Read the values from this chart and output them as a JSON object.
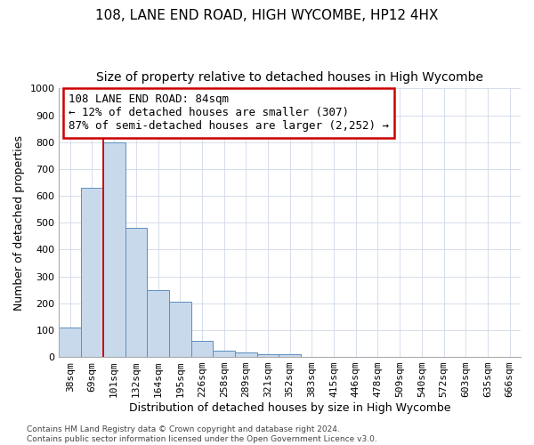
{
  "title1": "108, LANE END ROAD, HIGH WYCOMBE, HP12 4HX",
  "title2": "Size of property relative to detached houses in High Wycombe",
  "xlabel": "Distribution of detached houses by size in High Wycombe",
  "ylabel": "Number of detached properties",
  "footer1": "Contains HM Land Registry data © Crown copyright and database right 2024.",
  "footer2": "Contains public sector information licensed under the Open Government Licence v3.0.",
  "bar_values": [
    110,
    630,
    800,
    480,
    250,
    205,
    60,
    25,
    18,
    10,
    10,
    0,
    0,
    0,
    0,
    0,
    0,
    0,
    0,
    0,
    0
  ],
  "bar_labels": [
    "38sqm",
    "69sqm",
    "101sqm",
    "132sqm",
    "164sqm",
    "195sqm",
    "226sqm",
    "258sqm",
    "289sqm",
    "321sqm",
    "352sqm",
    "383sqm",
    "415sqm",
    "446sqm",
    "478sqm",
    "509sqm",
    "540sqm",
    "572sqm",
    "603sqm",
    "635sqm",
    "666sqm"
  ],
  "bar_color": "#c9d9ec",
  "bar_edgecolor": "#5a8fc0",
  "redline_x": 1.5,
  "annotation_line1": "108 LANE END ROAD: 84sqm",
  "annotation_line2": "← 12% of detached houses are smaller (307)",
  "annotation_line3": "87% of semi-detached houses are larger (2,252) →",
  "annotation_box_color": "#ffffff",
  "annotation_box_edgecolor": "#cc0000",
  "ylim": [
    0,
    1000
  ],
  "yticks": [
    0,
    100,
    200,
    300,
    400,
    500,
    600,
    700,
    800,
    900,
    1000
  ],
  "grid_color": "#d0d8e8",
  "bg_color": "#ffffff",
  "title1_fontsize": 11,
  "title2_fontsize": 10,
  "xlabel_fontsize": 9,
  "ylabel_fontsize": 9,
  "tick_fontsize": 8,
  "annotation_fontsize": 9
}
